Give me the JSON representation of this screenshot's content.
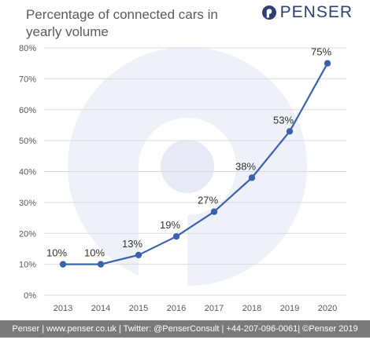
{
  "chart_data": {
    "type": "line",
    "title": "Percentage of connected cars in yearly volume",
    "categories": [
      "2013",
      "2014",
      "2015",
      "2016",
      "2017",
      "2018",
      "2019",
      "2020"
    ],
    "series": [
      {
        "values": [
          10,
          10,
          13,
          19,
          27,
          38,
          53,
          75
        ]
      }
    ],
    "data_labels": [
      "10%",
      "10%",
      "13%",
      "19%",
      "27%",
      "38%",
      "53%",
      "75%"
    ],
    "ylim": [
      0,
      80
    ],
    "yticks": [
      0,
      10,
      20,
      30,
      40,
      50,
      60,
      70,
      80
    ],
    "ytick_labels": [
      "0%",
      "10%",
      "20%",
      "30%",
      "40%",
      "50%",
      "60%",
      "70%",
      "80%"
    ],
    "grid": true,
    "legend": "none",
    "colors": {
      "line": "#3b63ad",
      "marker": "#3b63ad",
      "grid": "#d9d9d9",
      "watermark": "#eef1f8"
    }
  },
  "brand": {
    "name": "PENSER",
    "color": "#2d4270"
  },
  "footer": {
    "text": "Penser | www.penser.co.uk | Twitter: @PenserConsult | +44-207-096-0061| ©Penser 2019"
  }
}
